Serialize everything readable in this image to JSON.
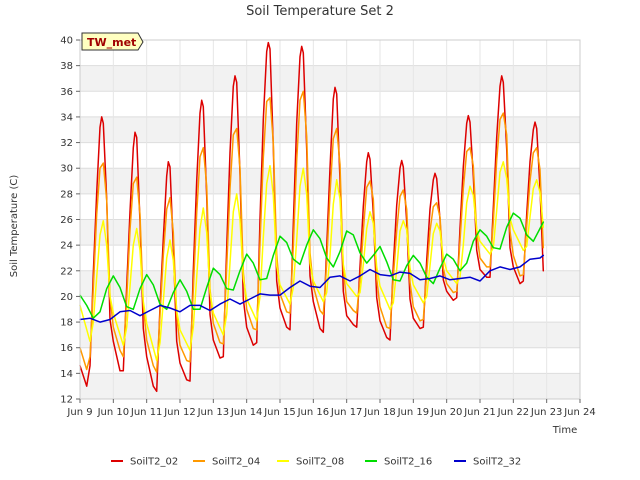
{
  "chart_data": {
    "type": "line",
    "title": "Soil Temperature Set 2",
    "xlabel": "Time",
    "ylabel": "Soil Temperature (C)",
    "site_label": "TW_met",
    "x_ticks": [
      "Jun 9",
      "Jun 10",
      "Jun 11",
      "Jun 12",
      "Jun 13",
      "Jun 14",
      "Jun 15",
      "Jun 16",
      "Jun 17",
      "Jun 18",
      "Jun 19",
      "Jun 20",
      "Jun 21",
      "Jun 22",
      "Jun 23",
      "Jun 24"
    ],
    "x_tick_values": [
      9,
      10,
      11,
      12,
      13,
      14,
      15,
      16,
      17,
      18,
      19,
      20,
      21,
      22,
      23,
      24
    ],
    "xlim": [
      9,
      24
    ],
    "y_ticks": [
      12,
      14,
      16,
      18,
      20,
      22,
      24,
      26,
      28,
      30,
      32,
      34,
      36,
      38,
      40
    ],
    "ylim": [
      12,
      40
    ],
    "grid": true,
    "legend_position": "bottom",
    "series": [
      {
        "name": "SoilT2_02",
        "color": "#dd0000",
        "x": [
          9.0,
          9.2,
          9.3,
          9.4,
          9.5,
          9.6,
          9.65,
          9.7,
          9.8,
          9.9,
          10.0,
          10.2,
          10.3,
          10.4,
          10.5,
          10.6,
          10.65,
          10.7,
          10.8,
          10.9,
          11.0,
          11.2,
          11.3,
          11.4,
          11.5,
          11.6,
          11.65,
          11.7,
          11.8,
          11.9,
          12.0,
          12.2,
          12.3,
          12.4,
          12.5,
          12.6,
          12.65,
          12.7,
          12.8,
          12.9,
          13.0,
          13.2,
          13.3,
          13.4,
          13.5,
          13.6,
          13.65,
          13.7,
          13.8,
          13.9,
          14.0,
          14.2,
          14.3,
          14.4,
          14.5,
          14.6,
          14.65,
          14.7,
          14.8,
          14.9,
          15.0,
          15.2,
          15.3,
          15.4,
          15.5,
          15.6,
          15.65,
          15.7,
          15.8,
          15.9,
          16.0,
          16.2,
          16.3,
          16.4,
          16.5,
          16.6,
          16.65,
          16.7,
          16.8,
          16.9,
          17.0,
          17.2,
          17.3,
          17.4,
          17.5,
          17.6,
          17.65,
          17.7,
          17.8,
          17.9,
          18.0,
          18.2,
          18.3,
          18.4,
          18.5,
          18.6,
          18.65,
          18.7,
          18.8,
          18.9,
          19.0,
          19.2,
          19.3,
          19.4,
          19.5,
          19.6,
          19.65,
          19.7,
          19.8,
          19.9,
          20.0,
          20.2,
          20.3,
          20.4,
          20.5,
          20.6,
          20.65,
          20.7,
          20.8,
          20.9,
          21.0,
          21.2,
          21.3,
          21.4,
          21.5,
          21.6,
          21.65,
          21.7,
          21.8,
          21.9,
          22.0,
          22.2,
          22.3,
          22.4,
          22.5,
          22.6,
          22.65,
          22.7,
          22.8,
          22.9
        ],
        "y": [
          14.6,
          13.0,
          14.6,
          21.8,
          28.1,
          33.2,
          34.0,
          33.5,
          27.6,
          18.2,
          16.5,
          14.2,
          14.2,
          20.8,
          26.6,
          31.6,
          32.8,
          32.4,
          25.8,
          17.5,
          15.3,
          13.0,
          12.6,
          19.2,
          24.5,
          29.4,
          30.5,
          30.1,
          23.8,
          16.5,
          14.8,
          13.5,
          13.4,
          22.0,
          29.0,
          34.3,
          35.3,
          34.8,
          27.8,
          18.6,
          16.6,
          15.2,
          15.3,
          23.8,
          31.2,
          36.4,
          37.2,
          36.7,
          29.5,
          19.8,
          17.6,
          16.2,
          16.4,
          26.0,
          33.8,
          39.1,
          39.8,
          39.3,
          31.7,
          21.2,
          19.1,
          17.6,
          17.4,
          25.6,
          33.5,
          38.7,
          39.5,
          39.0,
          31.5,
          21.6,
          19.6,
          17.5,
          17.2,
          23.8,
          30.0,
          35.4,
          36.3,
          35.8,
          29.1,
          20.4,
          18.5,
          17.8,
          17.6,
          22.3,
          27.0,
          30.5,
          31.2,
          30.7,
          26.5,
          19.9,
          18.1,
          16.8,
          16.6,
          22.4,
          27.1,
          30.0,
          30.6,
          30.1,
          25.8,
          19.8,
          18.3,
          17.5,
          17.6,
          22.8,
          26.8,
          29.1,
          29.6,
          29.2,
          26.0,
          21.3,
          20.4,
          19.7,
          19.9,
          25.3,
          30.1,
          33.5,
          34.1,
          33.6,
          29.4,
          23.6,
          22.1,
          21.5,
          21.5,
          26.9,
          32.4,
          36.4,
          37.2,
          36.7,
          31.5,
          23.8,
          22.3,
          21.0,
          21.2,
          26.4,
          30.5,
          33.0,
          33.6,
          33.1,
          28.4,
          22.0
        ]
      },
      {
        "name": "SoilT2_04",
        "color": "#ff9900",
        "x": [
          9.0,
          9.2,
          9.3,
          9.4,
          9.5,
          9.6,
          9.7,
          9.8,
          9.9,
          10.0,
          10.2,
          10.3,
          10.4,
          10.5,
          10.6,
          10.7,
          10.8,
          10.9,
          11.0,
          11.2,
          11.3,
          11.4,
          11.5,
          11.6,
          11.7,
          11.8,
          11.9,
          12.0,
          12.2,
          12.3,
          12.4,
          12.5,
          12.6,
          12.7,
          12.8,
          12.9,
          13.0,
          13.2,
          13.3,
          13.4,
          13.5,
          13.6,
          13.7,
          13.8,
          13.9,
          14.0,
          14.2,
          14.3,
          14.4,
          14.5,
          14.6,
          14.7,
          14.8,
          14.9,
          15.0,
          15.2,
          15.3,
          15.4,
          15.5,
          15.6,
          15.7,
          15.8,
          15.9,
          16.0,
          16.2,
          16.3,
          16.4,
          16.5,
          16.6,
          16.7,
          16.8,
          16.9,
          17.0,
          17.2,
          17.3,
          17.4,
          17.5,
          17.6,
          17.7,
          17.8,
          17.9,
          18.0,
          18.2,
          18.3,
          18.4,
          18.5,
          18.6,
          18.7,
          18.8,
          18.9,
          19.0,
          19.2,
          19.3,
          19.4,
          19.5,
          19.6,
          19.7,
          19.8,
          19.9,
          20.0,
          20.2,
          20.3,
          20.4,
          20.5,
          20.6,
          20.7,
          20.8,
          20.9,
          21.0,
          21.2,
          21.3,
          21.4,
          21.5,
          21.6,
          21.7,
          21.8,
          21.9,
          22.0,
          22.2,
          22.3,
          22.4,
          22.5,
          22.6,
          22.7,
          22.8,
          22.9
        ],
        "y": [
          16.0,
          14.3,
          15.3,
          20.6,
          26.4,
          30.0,
          30.4,
          27.5,
          20.0,
          17.6,
          15.8,
          15.3,
          19.8,
          25.2,
          28.8,
          29.3,
          26.4,
          19.3,
          16.6,
          14.6,
          14.1,
          18.5,
          23.2,
          26.8,
          27.7,
          25.0,
          18.5,
          16.2,
          15.0,
          14.9,
          20.5,
          26.5,
          30.9,
          31.6,
          28.6,
          20.6,
          17.9,
          16.4,
          16.3,
          22.3,
          28.4,
          32.6,
          33.1,
          30.0,
          21.9,
          19.0,
          17.5,
          17.4,
          24.1,
          30.8,
          35.2,
          35.5,
          32.0,
          23.3,
          20.2,
          18.8,
          18.7,
          23.9,
          30.6,
          35.3,
          36.0,
          32.5,
          23.4,
          20.8,
          18.9,
          18.6,
          22.6,
          28.0,
          32.3,
          33.1,
          30.3,
          22.1,
          19.6,
          18.9,
          18.7,
          21.3,
          25.1,
          28.5,
          29.0,
          27.6,
          21.4,
          19.2,
          17.6,
          17.5,
          21.5,
          25.1,
          27.8,
          28.3,
          26.8,
          21.1,
          19.2,
          18.1,
          18.2,
          21.8,
          25.1,
          27.0,
          27.3,
          26.2,
          22.2,
          21.0,
          20.3,
          20.4,
          24.3,
          28.4,
          31.3,
          31.6,
          30.2,
          25.0,
          23.0,
          22.3,
          22.3,
          25.8,
          30.6,
          33.8,
          34.3,
          32.6,
          25.1,
          23.2,
          21.6,
          21.7,
          25.5,
          29.0,
          31.2,
          31.6,
          29.9,
          23.8
        ]
      },
      {
        "name": "SoilT2_08",
        "color": "#ffff00",
        "x": [
          9.0,
          9.3,
          9.4,
          9.5,
          9.6,
          9.7,
          9.8,
          9.9,
          10.0,
          10.3,
          10.4,
          10.5,
          10.6,
          10.7,
          10.8,
          10.9,
          11.0,
          11.3,
          11.4,
          11.5,
          11.6,
          11.7,
          11.8,
          11.9,
          12.0,
          12.3,
          12.4,
          12.5,
          12.6,
          12.7,
          12.8,
          12.9,
          13.0,
          13.3,
          13.4,
          13.5,
          13.6,
          13.7,
          13.8,
          13.9,
          14.0,
          14.3,
          14.4,
          14.5,
          14.6,
          14.7,
          14.8,
          14.9,
          15.0,
          15.3,
          15.4,
          15.5,
          15.6,
          15.7,
          15.8,
          15.9,
          16.0,
          16.3,
          16.4,
          16.5,
          16.6,
          16.7,
          16.8,
          16.9,
          17.0,
          17.3,
          17.4,
          17.5,
          17.6,
          17.7,
          17.8,
          17.9,
          18.0,
          18.3,
          18.4,
          18.5,
          18.6,
          18.7,
          18.8,
          18.9,
          19.0,
          19.3,
          19.4,
          19.5,
          19.6,
          19.7,
          19.8,
          19.9,
          20.0,
          20.3,
          20.4,
          20.5,
          20.6,
          20.7,
          20.8,
          20.9,
          21.0,
          21.3,
          21.4,
          21.5,
          21.6,
          21.7,
          21.8,
          21.9,
          22.0,
          22.3,
          22.4,
          22.5,
          22.6,
          22.7,
          22.8,
          22.9
        ],
        "y": [
          19.3,
          16.5,
          18.0,
          21.5,
          24.8,
          25.9,
          24.0,
          20.0,
          18.7,
          16.2,
          17.6,
          20.8,
          24.0,
          25.3,
          23.6,
          19.6,
          17.9,
          15.0,
          16.4,
          19.6,
          23.0,
          24.4,
          22.8,
          18.9,
          17.4,
          15.8,
          17.6,
          21.5,
          25.3,
          26.9,
          25.0,
          20.3,
          18.7,
          17.0,
          18.6,
          22.6,
          26.6,
          28.0,
          26.0,
          21.4,
          19.8,
          18.1,
          20.0,
          24.6,
          28.8,
          30.2,
          27.9,
          22.4,
          20.9,
          19.4,
          20.7,
          24.4,
          28.6,
          30.0,
          28.0,
          22.6,
          21.2,
          19.6,
          20.3,
          23.2,
          27.2,
          29.1,
          27.6,
          22.5,
          21.0,
          20.0,
          20.3,
          22.5,
          25.3,
          26.6,
          25.7,
          22.3,
          20.8,
          19.0,
          19.5,
          22.1,
          25.1,
          25.9,
          25.2,
          22.2,
          20.9,
          19.5,
          20.0,
          22.4,
          24.9,
          25.7,
          25.1,
          23.0,
          22.0,
          21.0,
          21.5,
          24.0,
          27.3,
          28.6,
          27.9,
          25.2,
          24.3,
          23.3,
          23.8,
          26.7,
          29.7,
          30.5,
          29.2,
          26.1,
          25.2,
          23.6,
          23.9,
          26.2,
          28.4,
          29.1,
          28.1,
          25.4
        ]
      },
      {
        "name": "SoilT2_16",
        "color": "#00dd00",
        "x": [
          9.0,
          9.2,
          9.4,
          9.6,
          9.8,
          10.0,
          10.2,
          10.4,
          10.6,
          10.8,
          11.0,
          11.2,
          11.4,
          11.6,
          11.8,
          12.0,
          12.2,
          12.4,
          12.6,
          12.8,
          13.0,
          13.2,
          13.4,
          13.6,
          13.8,
          14.0,
          14.2,
          14.4,
          14.6,
          14.8,
          15.0,
          15.2,
          15.4,
          15.6,
          15.8,
          16.0,
          16.2,
          16.4,
          16.6,
          16.8,
          17.0,
          17.2,
          17.4,
          17.6,
          17.8,
          18.0,
          18.2,
          18.4,
          18.6,
          18.8,
          19.0,
          19.2,
          19.4,
          19.6,
          19.8,
          20.0,
          20.2,
          20.4,
          20.6,
          20.8,
          21.0,
          21.2,
          21.4,
          21.6,
          21.8,
          22.0,
          22.2,
          22.4,
          22.6,
          22.8,
          22.9
        ],
        "y": [
          20.1,
          19.3,
          18.3,
          18.8,
          20.6,
          21.6,
          20.7,
          19.2,
          19.0,
          20.6,
          21.7,
          20.9,
          19.4,
          19.0,
          20.3,
          21.3,
          20.4,
          19.0,
          19.0,
          20.7,
          22.2,
          21.7,
          20.6,
          20.5,
          22.0,
          23.3,
          22.6,
          21.3,
          21.4,
          23.2,
          24.7,
          24.2,
          22.9,
          22.5,
          24.0,
          25.2,
          24.5,
          23.0,
          22.3,
          23.5,
          25.1,
          24.8,
          23.4,
          22.6,
          23.2,
          23.9,
          22.7,
          21.3,
          21.2,
          22.4,
          23.2,
          22.6,
          21.5,
          21.0,
          22.2,
          23.3,
          22.9,
          22.0,
          22.6,
          24.3,
          25.2,
          24.7,
          23.8,
          23.7,
          25.4,
          26.5,
          26.1,
          24.8,
          24.3,
          25.3,
          25.8
        ]
      },
      {
        "name": "SoilT2_32",
        "color": "#0000cc",
        "x": [
          9.0,
          9.3,
          9.6,
          9.9,
          10.2,
          10.5,
          10.8,
          11.1,
          11.4,
          11.7,
          12.0,
          12.3,
          12.6,
          12.9,
          13.2,
          13.5,
          13.8,
          14.1,
          14.4,
          14.7,
          15.0,
          15.3,
          15.6,
          15.9,
          16.2,
          16.5,
          16.8,
          17.1,
          17.4,
          17.7,
          18.0,
          18.3,
          18.6,
          18.9,
          19.2,
          19.5,
          19.8,
          20.1,
          20.4,
          20.7,
          21.0,
          21.3,
          21.6,
          21.9,
          22.2,
          22.5,
          22.8,
          22.9
        ],
        "y": [
          18.2,
          18.3,
          18.0,
          18.2,
          18.8,
          18.9,
          18.5,
          18.9,
          19.3,
          19.1,
          18.8,
          19.3,
          19.3,
          18.9,
          19.4,
          19.8,
          19.4,
          19.8,
          20.2,
          20.1,
          20.1,
          20.7,
          21.2,
          20.8,
          20.7,
          21.5,
          21.6,
          21.2,
          21.6,
          22.1,
          21.7,
          21.6,
          21.9,
          21.8,
          21.3,
          21.4,
          21.6,
          21.3,
          21.4,
          21.5,
          21.2,
          22.0,
          22.3,
          22.1,
          22.3,
          22.9,
          23.0,
          23.2
        ]
      }
    ]
  }
}
